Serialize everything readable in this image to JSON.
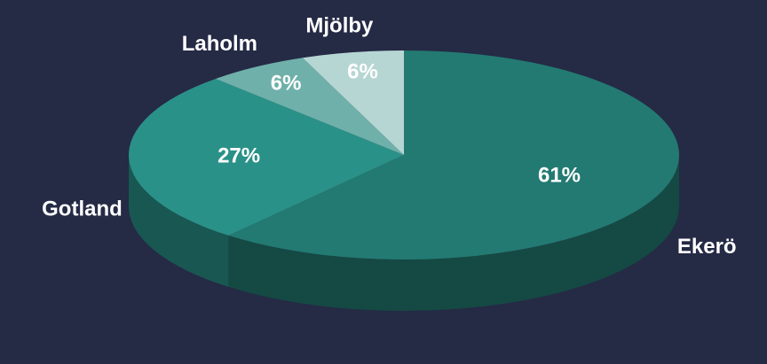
{
  "chart_data": {
    "type": "pie",
    "categories": [
      "Ekerö",
      "Gotland",
      "Laholm",
      "Mjölby"
    ],
    "values": [
      61,
      27,
      6,
      6
    ],
    "value_labels": [
      "61%",
      "27%",
      "6%",
      "6%"
    ],
    "colors": [
      "#237a72",
      "#2a9188",
      "#6fb0aa",
      "#b6d6d3"
    ]
  }
}
